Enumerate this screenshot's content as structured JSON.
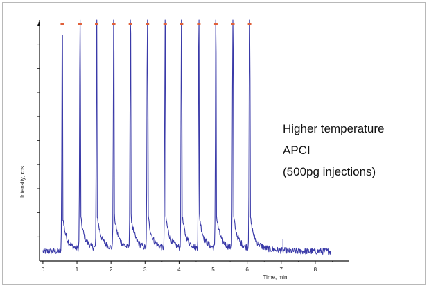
{
  "chart_data": {
    "type": "line",
    "xlabel": "Time, min",
    "ylabel": "Intensity, cps",
    "xlim": [
      -0.1,
      9.0
    ],
    "ylim": [
      0,
      100
    ],
    "x_ticks": [
      0,
      1,
      2,
      3,
      4,
      5,
      6,
      7,
      8
    ],
    "y_tick_labels_shown": false,
    "grid": false,
    "legend": "none",
    "annotation": [
      "Higher temperature",
      "APCI",
      "(500pg injections)"
    ],
    "baseline_level": 4,
    "peaks": [
      {
        "apex_min": 0.57,
        "height": 100
      },
      {
        "apex_min": 1.09,
        "height": 100
      },
      {
        "apex_min": 1.58,
        "height": 100
      },
      {
        "apex_min": 2.08,
        "height": 100
      },
      {
        "apex_min": 2.57,
        "height": 100
      },
      {
        "apex_min": 3.07,
        "height": 100
      },
      {
        "apex_min": 3.59,
        "height": 100
      },
      {
        "apex_min": 4.07,
        "height": 100
      },
      {
        "apex_min": 4.58,
        "height": 100
      },
      {
        "apex_min": 5.08,
        "height": 100
      },
      {
        "apex_min": 5.58,
        "height": 100
      },
      {
        "apex_min": 6.07,
        "height": 100
      }
    ],
    "colors": {
      "trace": "#3a3aa8",
      "peak_marker": "#e0603a",
      "axis": "#111111"
    }
  }
}
